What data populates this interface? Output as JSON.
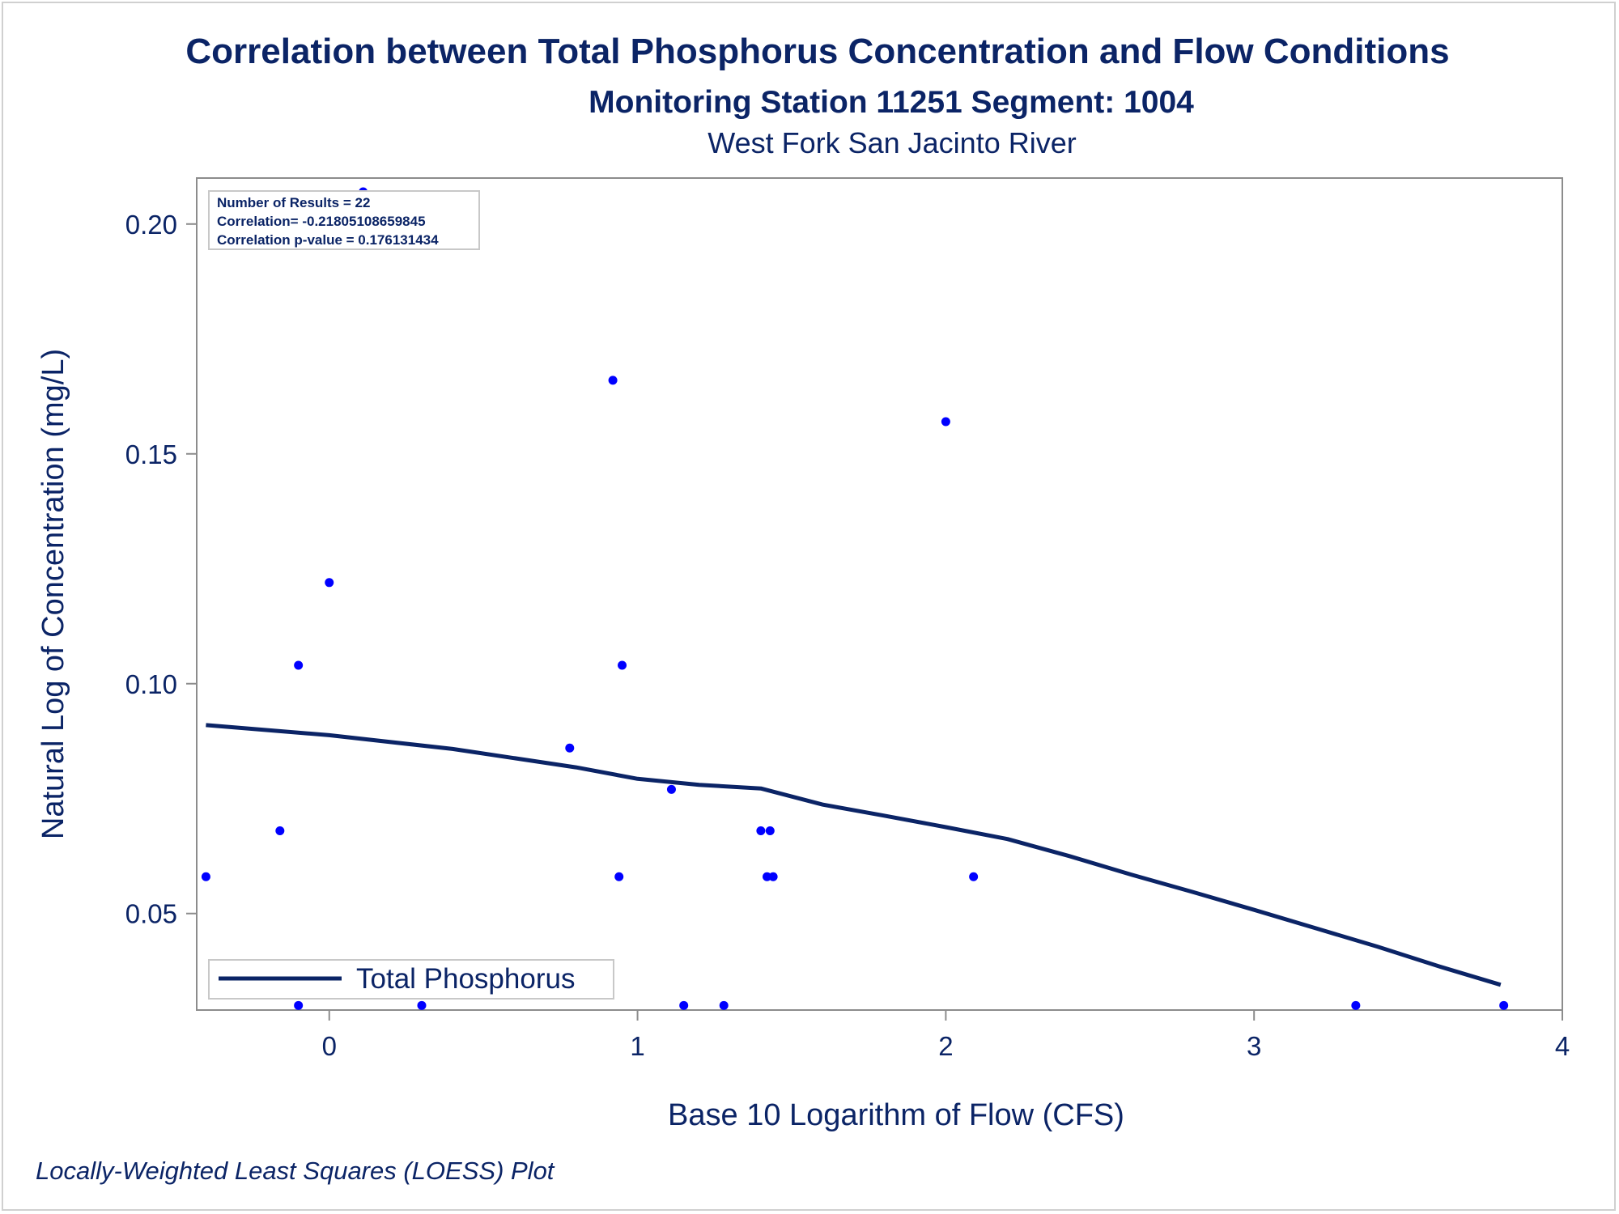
{
  "chart_data": {
    "type": "scatter",
    "title": "Correlation between Total Phosphorus Concentration and Flow Conditions",
    "subtitle": "Monitoring Station 11251 Segment: 1004",
    "subtitle2": "West Fork San Jacinto River",
    "xlabel": "Base 10 Logarithm of Flow (CFS)",
    "ylabel": "Natural Log of Concentration (mg/L)",
    "xlim": [
      -0.43,
      4.0
    ],
    "ylim": [
      0.029,
      0.21
    ],
    "xticks": [
      0,
      1,
      2,
      3,
      4
    ],
    "xtick_labels": [
      "0",
      "1",
      "2",
      "3",
      "4"
    ],
    "yticks": [
      0.05,
      0.1,
      0.15,
      0.2
    ],
    "ytick_labels": [
      "0.05",
      "0.10",
      "0.15",
      "0.20"
    ],
    "grid": false,
    "points": [
      {
        "x": -0.4,
        "y": 0.058
      },
      {
        "x": -0.16,
        "y": 0.068
      },
      {
        "x": -0.1,
        "y": 0.104
      },
      {
        "x": -0.1,
        "y": 0.03
      },
      {
        "x": 0.0,
        "y": 0.122
      },
      {
        "x": 0.11,
        "y": 0.207
      },
      {
        "x": 0.3,
        "y": 0.03
      },
      {
        "x": 0.78,
        "y": 0.086
      },
      {
        "x": 0.92,
        "y": 0.166
      },
      {
        "x": 0.94,
        "y": 0.058
      },
      {
        "x": 0.95,
        "y": 0.104
      },
      {
        "x": 1.11,
        "y": 0.077
      },
      {
        "x": 1.15,
        "y": 0.03
      },
      {
        "x": 1.28,
        "y": 0.03
      },
      {
        "x": 1.4,
        "y": 0.068
      },
      {
        "x": 1.42,
        "y": 0.058
      },
      {
        "x": 1.43,
        "y": 0.068
      },
      {
        "x": 1.44,
        "y": 0.058
      },
      {
        "x": 2.0,
        "y": 0.157
      },
      {
        "x": 2.09,
        "y": 0.058
      },
      {
        "x": 3.33,
        "y": 0.03
      },
      {
        "x": 3.81,
        "y": 0.03
      }
    ],
    "series": [
      {
        "name": "Total Phosphorus",
        "x": [
          -0.4,
          0.0,
          0.4,
          0.8,
          1.0,
          1.2,
          1.4,
          1.6,
          1.8,
          2.0,
          2.2,
          2.4,
          2.6,
          2.8,
          3.0,
          3.2,
          3.4,
          3.6,
          3.8
        ],
        "y": [
          0.091,
          0.0888,
          0.0858,
          0.0818,
          0.0793,
          0.078,
          0.0772,
          0.0737,
          0.0713,
          0.0688,
          0.0662,
          0.0625,
          0.0585,
          0.0547,
          0.0508,
          0.0468,
          0.0428,
          0.0385,
          0.0345
        ]
      }
    ],
    "stats": {
      "line1": "Number of Results = 22",
      "line2": "Correlation= -0.21805108659845",
      "line3": "Correlation p-value = 0.176131434"
    },
    "legend_position": "bottom-left",
    "footnote": "Locally-Weighted Least Squares (LOESS) Plot",
    "colors": {
      "text": "#0b2466",
      "line": "#0b2466",
      "points": "#0000ff",
      "frame": "#8c8c8c"
    }
  }
}
